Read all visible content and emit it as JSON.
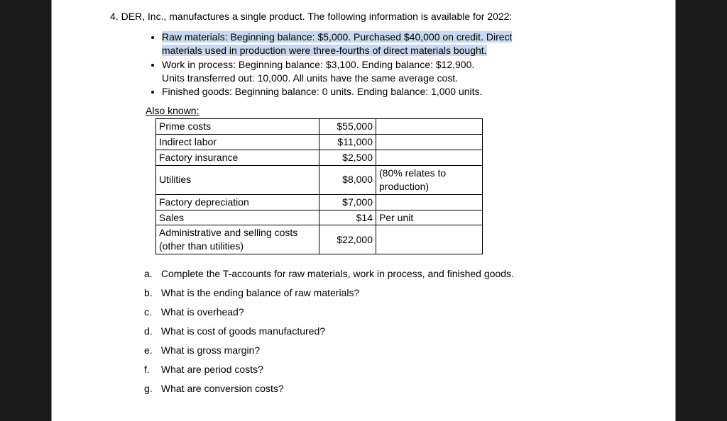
{
  "question": {
    "number": "4.",
    "text": "DER, Inc., manufactures a single product. The following information is available for 2022:"
  },
  "bullets": [
    {
      "highlighted": "Raw materials: Beginning balance: $5,000. Purchased $40,000 on credit. Direct",
      "line2": "materials used in production were three-fourths of direct materials bought."
    },
    {
      "plain": "Work in process: Beginning balance: $3,100. Ending balance: $12,900.",
      "line2b": "Units transferred out: 10,000. All units have the same average cost."
    },
    {
      "plain3": "Finished goods: Beginning balance: 0 units. Ending balance: 1,000 units."
    }
  ],
  "alsoKnownLabel": "Also known:",
  "table": {
    "rows": [
      {
        "label": "Prime costs",
        "amount": "$55,000",
        "note": ""
      },
      {
        "label": "Indirect labor",
        "amount": "$11,000",
        "note": ""
      },
      {
        "label": "Factory insurance",
        "amount": "$2,500",
        "note": ""
      },
      {
        "label": "Utilities",
        "amount": "$8,000",
        "note": "(80% relates to production)"
      },
      {
        "label": "Factory depreciation",
        "amount": "$7,000",
        "note": ""
      },
      {
        "label": "Sales",
        "amount": "$14",
        "note": "Per unit"
      },
      {
        "label": "Administrative and selling costs (other than utilities)",
        "amount": "$22,000",
        "note": ""
      }
    ]
  },
  "subQuestions": [
    {
      "letter": "a.",
      "text": "Complete the T-accounts for raw materials, work in process, and finished goods."
    },
    {
      "letter": "b.",
      "text": "What is the ending balance of raw materials?"
    },
    {
      "letter": "c.",
      "text": "What is overhead?"
    },
    {
      "letter": "d.",
      "text": "What is cost of goods manufactured?"
    },
    {
      "letter": "e.",
      "text": "What is gross margin?"
    },
    {
      "letter": "f.",
      "text": "What are period costs?"
    },
    {
      "letter": "g.",
      "text": "What are conversion costs?"
    }
  ]
}
